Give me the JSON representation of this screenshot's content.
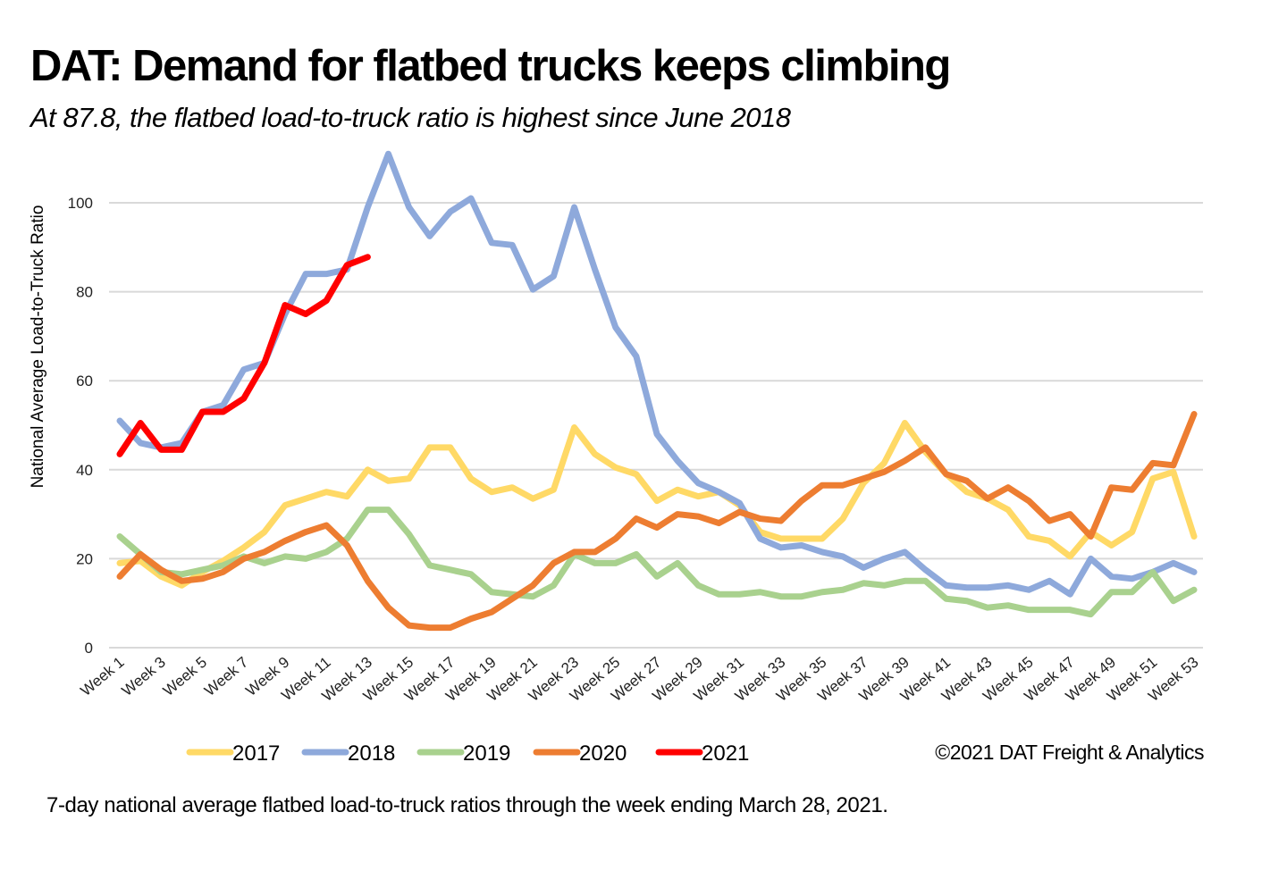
{
  "title": "DAT: Demand for flatbed trucks keeps climbing",
  "subtitle": "At 87.8, the flatbed load-to-truck ratio is highest since June 2018",
  "caption": "7-day national average flatbed load-to-truck ratios through the week ending March 28, 2021.",
  "chart_data": {
    "type": "line",
    "title": "DAT: Demand for flatbed trucks keeps climbing",
    "subtitle": "At 87.8, the flatbed load-to-truck ratio is highest since June 2018",
    "xlabel": "",
    "ylabel": "National Average Load-to-Truck Ratio",
    "ylim": [
      0,
      100
    ],
    "yticks": [
      0,
      20,
      40,
      60,
      80,
      100
    ],
    "grid": true,
    "legend_position": "bottom",
    "credit": "©2021 DAT Freight & Analytics",
    "x_tick_labels": [
      "Week 1",
      "Week 3",
      "Week 5",
      "Week 7",
      "Week 9",
      "Week 11",
      "Week 13",
      "Week 15",
      "Week 17",
      "Week 19",
      "Week 21",
      "Week 23",
      "Week 25",
      "Week 27",
      "Week 29",
      "Week 31",
      "Week 33",
      "Week 35",
      "Week 37",
      "Week 39",
      "Week 41",
      "Week 43",
      "Week 45",
      "Week 47",
      "Week 49",
      "Week 51",
      "Week 53"
    ],
    "x_weeks": [
      1,
      2,
      3,
      4,
      5,
      6,
      7,
      8,
      9,
      10,
      11,
      12,
      13,
      14,
      15,
      16,
      17,
      18,
      19,
      20,
      21,
      22,
      23,
      24,
      25,
      26,
      27,
      28,
      29,
      30,
      31,
      32,
      33,
      34,
      35,
      36,
      37,
      38,
      39,
      40,
      41,
      42,
      43,
      44,
      45,
      46,
      47,
      48,
      49,
      50,
      51,
      52,
      53
    ],
    "series": [
      {
        "name": "2017",
        "color": "#FFD966",
        "values": [
          19,
          19.5,
          16,
          14,
          17,
          19.5,
          22.5,
          26,
          32,
          33.5,
          35,
          34,
          40,
          37.5,
          38,
          45,
          45,
          38,
          35,
          36,
          33.5,
          35.5,
          49.5,
          43.5,
          40.5,
          39,
          33,
          35.5,
          34,
          35,
          32,
          26,
          24.5,
          24.5,
          24.5,
          29,
          37,
          41.5,
          50.5,
          44,
          39,
          35,
          33.5,
          31,
          25,
          24,
          20.5,
          26,
          23,
          26,
          38,
          39.5,
          25
        ]
      },
      {
        "name": "2018",
        "color": "#8EA9DB",
        "values": [
          51,
          46,
          45,
          46,
          53,
          54.5,
          62.5,
          64,
          75,
          84,
          84,
          85,
          99,
          111,
          99,
          92.5,
          98,
          101,
          91,
          90.5,
          80.5,
          83.5,
          99,
          85,
          72,
          65.5,
          48,
          42,
          37,
          35,
          32.5,
          24.5,
          22.5,
          23,
          21.5,
          20.5,
          18,
          20,
          21.5,
          17.5,
          14,
          13.5,
          13.5,
          14,
          13,
          15,
          12,
          20,
          16,
          15.5,
          17,
          19,
          17
        ]
      },
      {
        "name": "2019",
        "color": "#A9D18E",
        "values": [
          25,
          21,
          17,
          16.5,
          17.5,
          18.5,
          20.5,
          19,
          20.5,
          20,
          21.5,
          24.5,
          31,
          31,
          25.5,
          18.5,
          17.5,
          16.5,
          12.5,
          12,
          11.5,
          14,
          21,
          19,
          19,
          21,
          16,
          19,
          14,
          12,
          12,
          12.5,
          11.5,
          11.5,
          12.5,
          13,
          14.5,
          14,
          15,
          15,
          11,
          10.5,
          9,
          9.5,
          8.5,
          8.5,
          8.5,
          7.5,
          12.5,
          12.5,
          17,
          10.5,
          13
        ]
      },
      {
        "name": "2020",
        "color": "#ED7D31",
        "values": [
          16,
          21,
          17.5,
          15,
          15.5,
          17,
          20,
          21.5,
          24,
          26,
          27.5,
          23,
          15,
          9,
          5,
          4.5,
          4.5,
          6.5,
          8,
          11,
          14,
          19,
          21.5,
          21.5,
          24.5,
          29,
          27,
          30,
          29.5,
          28,
          30.5,
          29,
          28.5,
          33,
          36.5,
          36.5,
          38,
          39.5,
          42,
          45,
          39,
          37.5,
          33.5,
          36,
          33,
          28.5,
          30,
          25,
          36,
          35.5,
          41.5,
          41,
          52.5
        ]
      },
      {
        "name": "2021",
        "color": "#FF0000",
        "values": [
          43.5,
          50.5,
          44.5,
          44.5,
          53,
          53,
          56,
          64,
          77,
          75,
          78,
          86,
          87.8
        ]
      }
    ]
  }
}
